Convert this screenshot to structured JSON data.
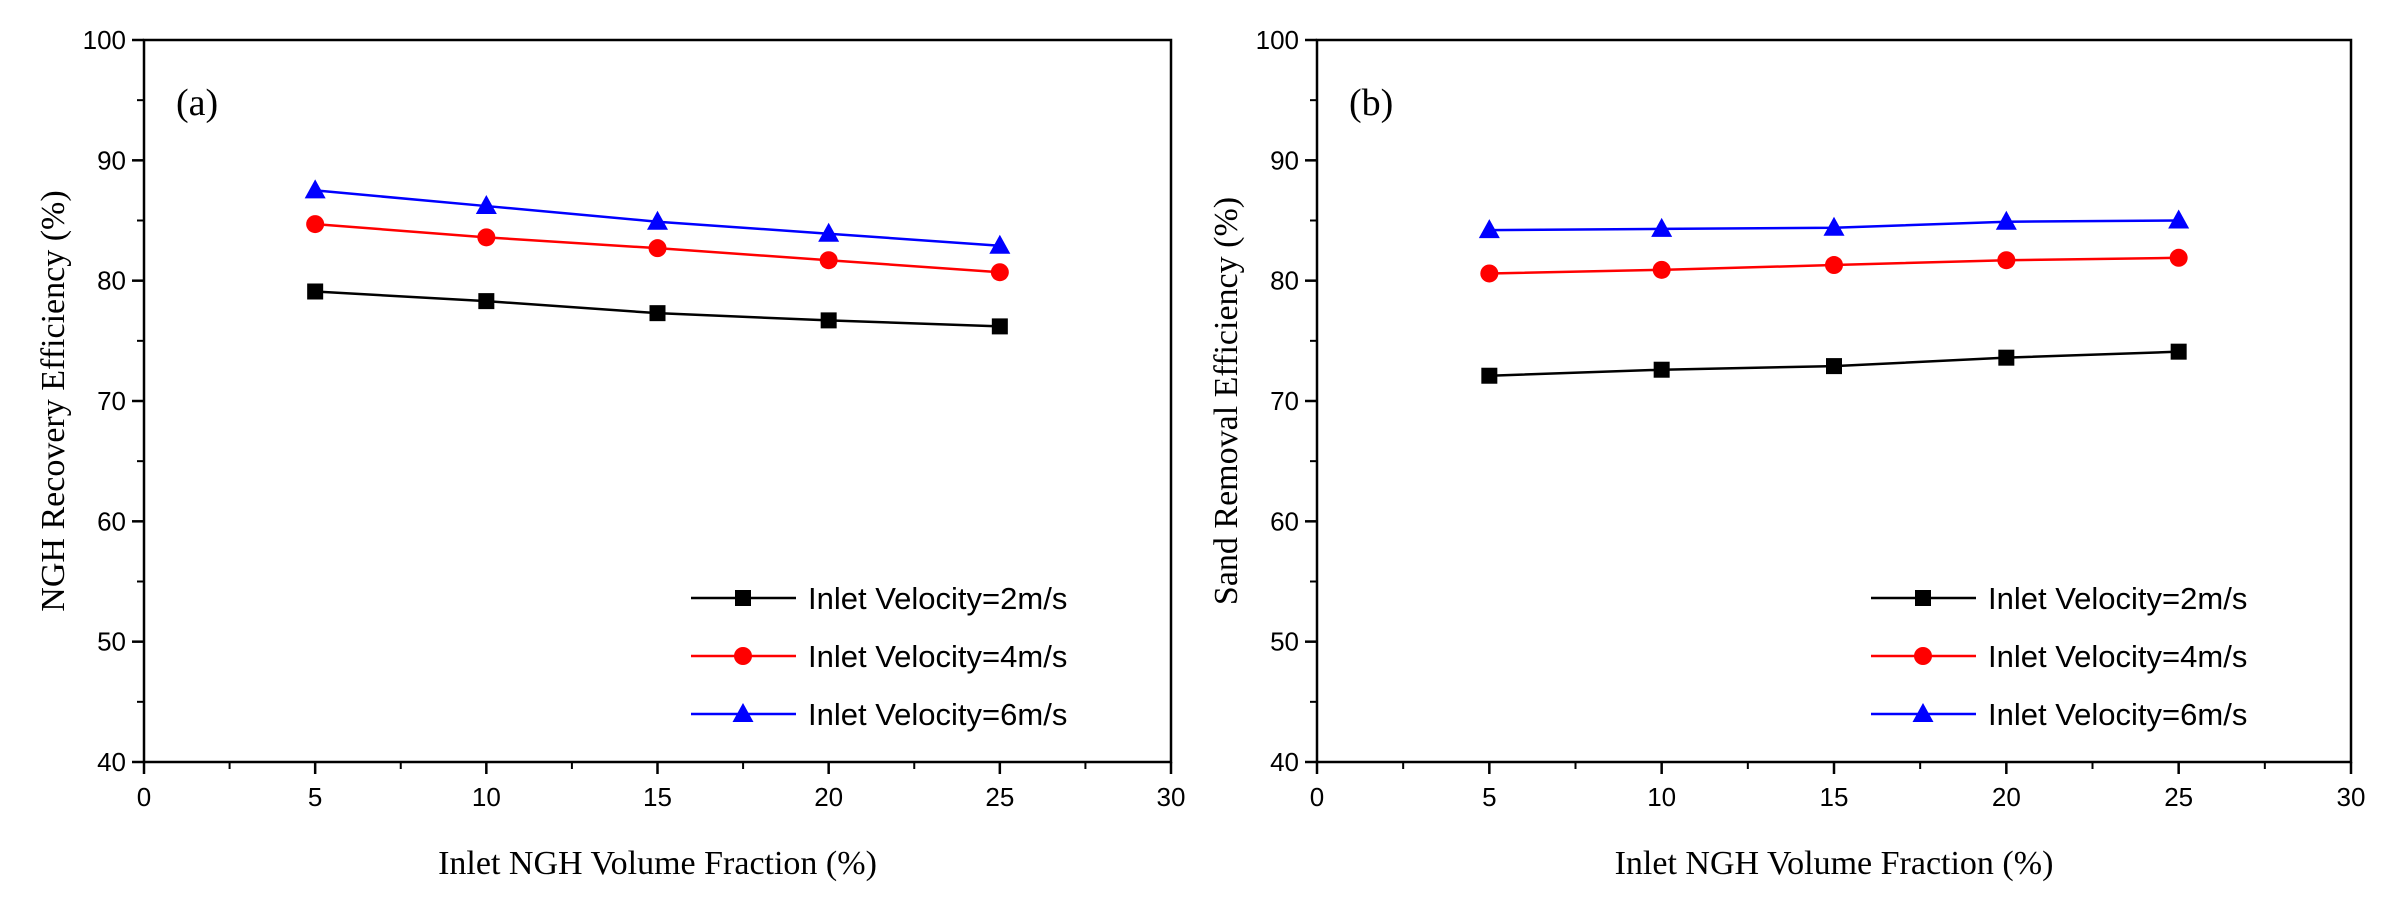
{
  "chart_data": [
    {
      "type": "line",
      "panel_label": "(a)",
      "xlabel": "Inlet NGH Volume Fraction (%)",
      "ylabel": "NGH Recovery Efficiency (%)",
      "xlim": [
        0,
        30
      ],
      "ylim": [
        40,
        100
      ],
      "x_ticks": [
        0,
        5,
        10,
        15,
        20,
        25,
        30
      ],
      "y_ticks": [
        40,
        50,
        60,
        70,
        80,
        90,
        100
      ],
      "legend_position": "bottom-right",
      "x": [
        5,
        10,
        15,
        20,
        25
      ],
      "series": [
        {
          "name": "Inlet Velocity=2m/s",
          "color": "#000000",
          "marker": "square",
          "values": [
            79.1,
            78.3,
            77.3,
            76.7,
            76.2
          ]
        },
        {
          "name": "Inlet Velocity=4m/s",
          "color": "#ff0000",
          "marker": "circle",
          "values": [
            84.7,
            83.6,
            82.7,
            81.7,
            80.7
          ]
        },
        {
          "name": "Inlet Velocity=6m/s",
          "color": "#0000ff",
          "marker": "triangle",
          "values": [
            87.5,
            86.2,
            84.9,
            83.9,
            82.9
          ]
        }
      ]
    },
    {
      "type": "line",
      "panel_label": "(b)",
      "xlabel": "Inlet NGH Volume Fraction (%)",
      "ylabel": "Sand Removal Efficiency (%)",
      "xlim": [
        0,
        30
      ],
      "ylim": [
        40,
        100
      ],
      "x_ticks": [
        0,
        5,
        10,
        15,
        20,
        25,
        30
      ],
      "y_ticks": [
        40,
        50,
        60,
        70,
        80,
        90,
        100
      ],
      "legend_position": "bottom-right",
      "x": [
        5,
        10,
        15,
        20,
        25
      ],
      "series": [
        {
          "name": "Inlet Velocity=2m/s",
          "color": "#000000",
          "marker": "square",
          "values": [
            72.1,
            72.6,
            72.9,
            73.6,
            74.1
          ]
        },
        {
          "name": "Inlet Velocity=4m/s",
          "color": "#ff0000",
          "marker": "circle",
          "values": [
            80.6,
            80.9,
            81.3,
            81.7,
            81.9
          ]
        },
        {
          "name": "Inlet Velocity=6m/s",
          "color": "#0000ff",
          "marker": "triangle",
          "values": [
            84.2,
            84.3,
            84.4,
            84.9,
            85.0
          ]
        }
      ]
    }
  ]
}
